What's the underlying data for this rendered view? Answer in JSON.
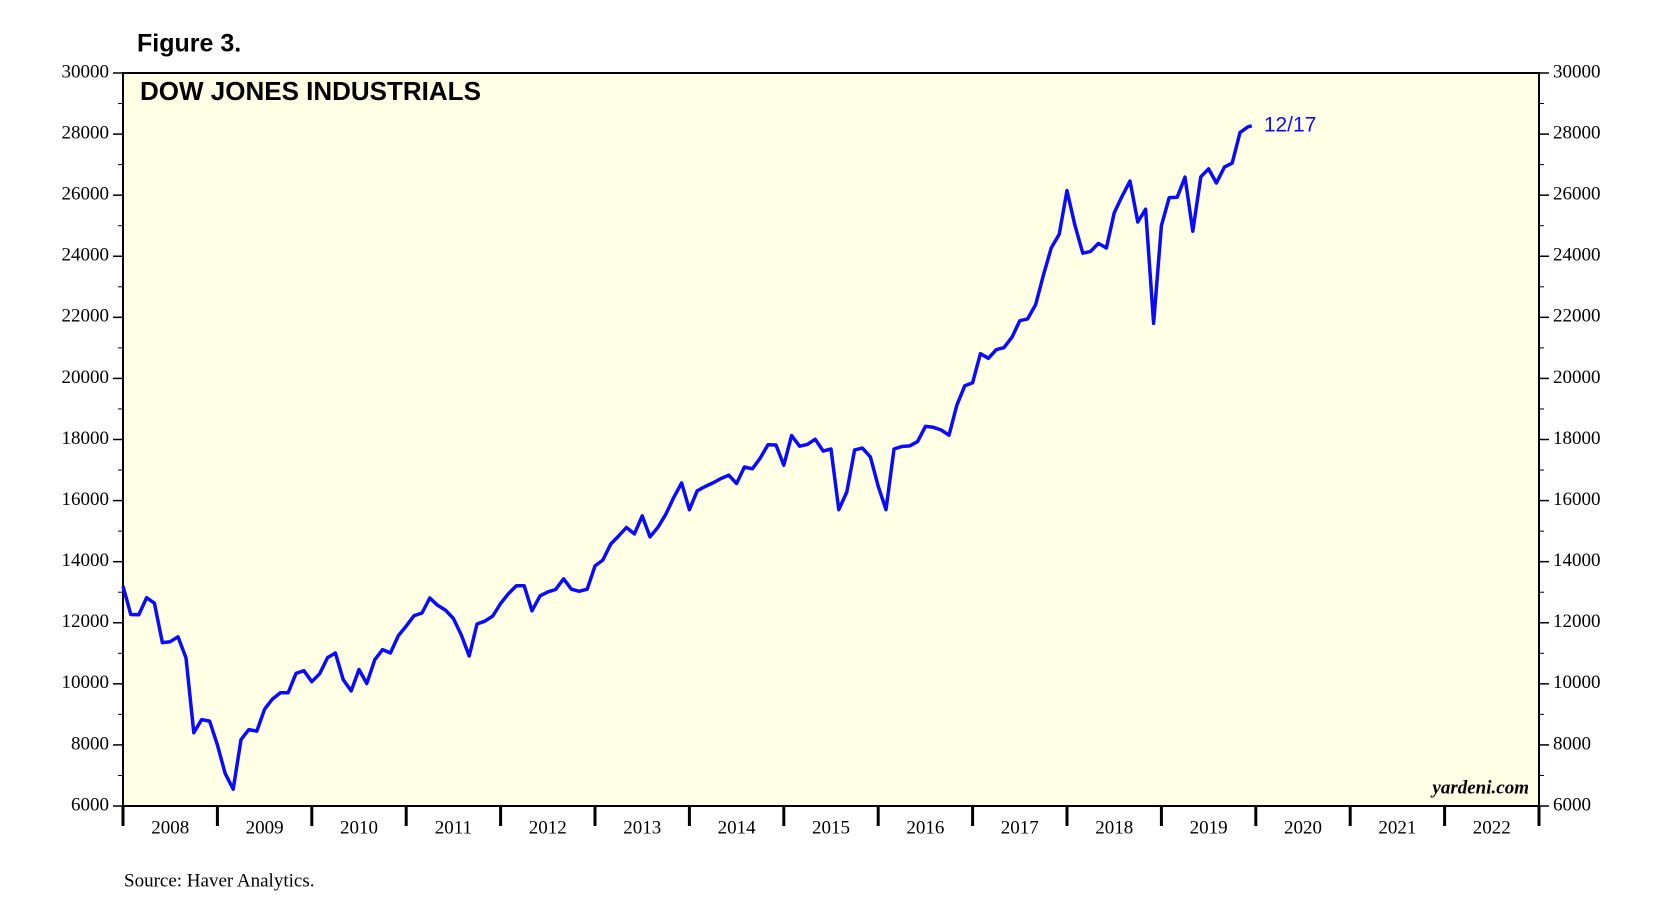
{
  "chart_data": {
    "type": "line",
    "figure_label": "Figure 3.",
    "title": "DOW JONES INDUSTRIALS",
    "source": "Source: Haver Analytics.",
    "watermark": "yardeni.com",
    "annotation": "12/17",
    "background": "#ffffe6",
    "xlim": [
      2008,
      2023
    ],
    "xticks": [
      {
        "value": 2008.5,
        "label": "2008"
      },
      {
        "value": 2009.5,
        "label": "2009"
      },
      {
        "value": 2010.5,
        "label": "2010"
      },
      {
        "value": 2011.5,
        "label": "2011"
      },
      {
        "value": 2012.5,
        "label": "2012"
      },
      {
        "value": 2013.5,
        "label": "2013"
      },
      {
        "value": 2014.5,
        "label": "2014"
      },
      {
        "value": 2015.5,
        "label": "2015"
      },
      {
        "value": 2016.5,
        "label": "2016"
      },
      {
        "value": 2017.5,
        "label": "2017"
      },
      {
        "value": 2018.5,
        "label": "2018"
      },
      {
        "value": 2019.5,
        "label": "2019"
      },
      {
        "value": 2020.5,
        "label": "2020"
      },
      {
        "value": 2021.5,
        "label": "2021"
      },
      {
        "value": 2022.5,
        "label": "2022"
      }
    ],
    "ylim": [
      6000,
      30000
    ],
    "yticks": [
      6000,
      8000,
      10000,
      12000,
      14000,
      16000,
      18000,
      20000,
      22000,
      24000,
      26000,
      28000,
      30000
    ],
    "x": [
      2008.0,
      2008.083,
      2008.167,
      2008.25,
      2008.333,
      2008.417,
      2008.5,
      2008.583,
      2008.667,
      2008.75,
      2008.833,
      2008.917,
      2009.0,
      2009.083,
      2009.167,
      2009.25,
      2009.333,
      2009.417,
      2009.5,
      2009.583,
      2009.667,
      2009.75,
      2009.833,
      2009.917,
      2010.0,
      2010.083,
      2010.167,
      2010.25,
      2010.333,
      2010.417,
      2010.5,
      2010.583,
      2010.667,
      2010.75,
      2010.833,
      2010.917,
      2011.0,
      2011.083,
      2011.167,
      2011.25,
      2011.333,
      2011.417,
      2011.5,
      2011.583,
      2011.667,
      2011.75,
      2011.833,
      2011.917,
      2012.0,
      2012.083,
      2012.167,
      2012.25,
      2012.333,
      2012.417,
      2012.5,
      2012.583,
      2012.667,
      2012.75,
      2012.833,
      2012.917,
      2013.0,
      2013.083,
      2013.167,
      2013.25,
      2013.333,
      2013.417,
      2013.5,
      2013.583,
      2013.667,
      2013.75,
      2013.833,
      2013.917,
      2014.0,
      2014.083,
      2014.167,
      2014.25,
      2014.333,
      2014.417,
      2014.5,
      2014.583,
      2014.667,
      2014.75,
      2014.833,
      2014.917,
      2015.0,
      2015.083,
      2015.167,
      2015.25,
      2015.333,
      2015.417,
      2015.5,
      2015.583,
      2015.667,
      2015.75,
      2015.833,
      2015.917,
      2016.0,
      2016.083,
      2016.167,
      2016.25,
      2016.333,
      2016.417,
      2016.5,
      2016.583,
      2016.667,
      2016.75,
      2016.833,
      2016.917,
      2017.0,
      2017.083,
      2017.167,
      2017.25,
      2017.333,
      2017.417,
      2017.5,
      2017.583,
      2017.667,
      2017.75,
      2017.833,
      2017.917,
      2018.0,
      2018.083,
      2018.167,
      2018.25,
      2018.333,
      2018.417,
      2018.5,
      2018.583,
      2018.667,
      2018.75,
      2018.833,
      2018.917,
      2019.0,
      2019.083,
      2019.167,
      2019.25,
      2019.333,
      2019.417,
      2019.5,
      2019.583,
      2019.667,
      2019.75,
      2019.833,
      2019.917,
      2019.958
    ],
    "series": [
      {
        "name": "Dow Jones Industrials",
        "color": "#0a0aff",
        "values": [
          13200,
          12270,
          12260,
          12820,
          12640,
          11350,
          11380,
          11540,
          10850,
          8400,
          8830,
          8780,
          8000,
          7060,
          6550,
          8170,
          8500,
          8450,
          9170,
          9500,
          9710,
          9710,
          10340,
          10430,
          10070,
          10330,
          10860,
          11010,
          10140,
          9770,
          10470,
          10010,
          10790,
          11120,
          11010,
          11580,
          11890,
          12230,
          12320,
          12810,
          12570,
          12410,
          12140,
          11610,
          10910,
          11960,
          12050,
          12220,
          12630,
          12950,
          13210,
          13210,
          12390,
          12880,
          13010,
          13090,
          13440,
          13100,
          13030,
          13100,
          13860,
          14050,
          14580,
          14840,
          15120,
          14910,
          15500,
          14810,
          15130,
          15550,
          16090,
          16580,
          15700,
          16320,
          16460,
          16580,
          16720,
          16830,
          16560,
          17100,
          17040,
          17390,
          17830,
          17820,
          17160,
          18130,
          17780,
          17840,
          18010,
          17620,
          17690,
          15700,
          16280,
          17660,
          17720,
          17430,
          16470,
          15700,
          17690,
          17770,
          17790,
          17930,
          18430,
          18400,
          18310,
          18140,
          19120,
          19760,
          19860,
          20810,
          20660,
          20940,
          21010,
          21350,
          21890,
          21950,
          22410,
          23380,
          24270,
          24720,
          26150,
          25030,
          24100,
          24160,
          24420,
          24270,
          25420,
          25960,
          26460,
          25120,
          25540,
          21800,
          25000,
          25920,
          25930,
          26590,
          24820,
          26600,
          26860,
          26400,
          26920,
          27050,
          28050,
          28240,
          28270
        ]
      }
    ]
  }
}
